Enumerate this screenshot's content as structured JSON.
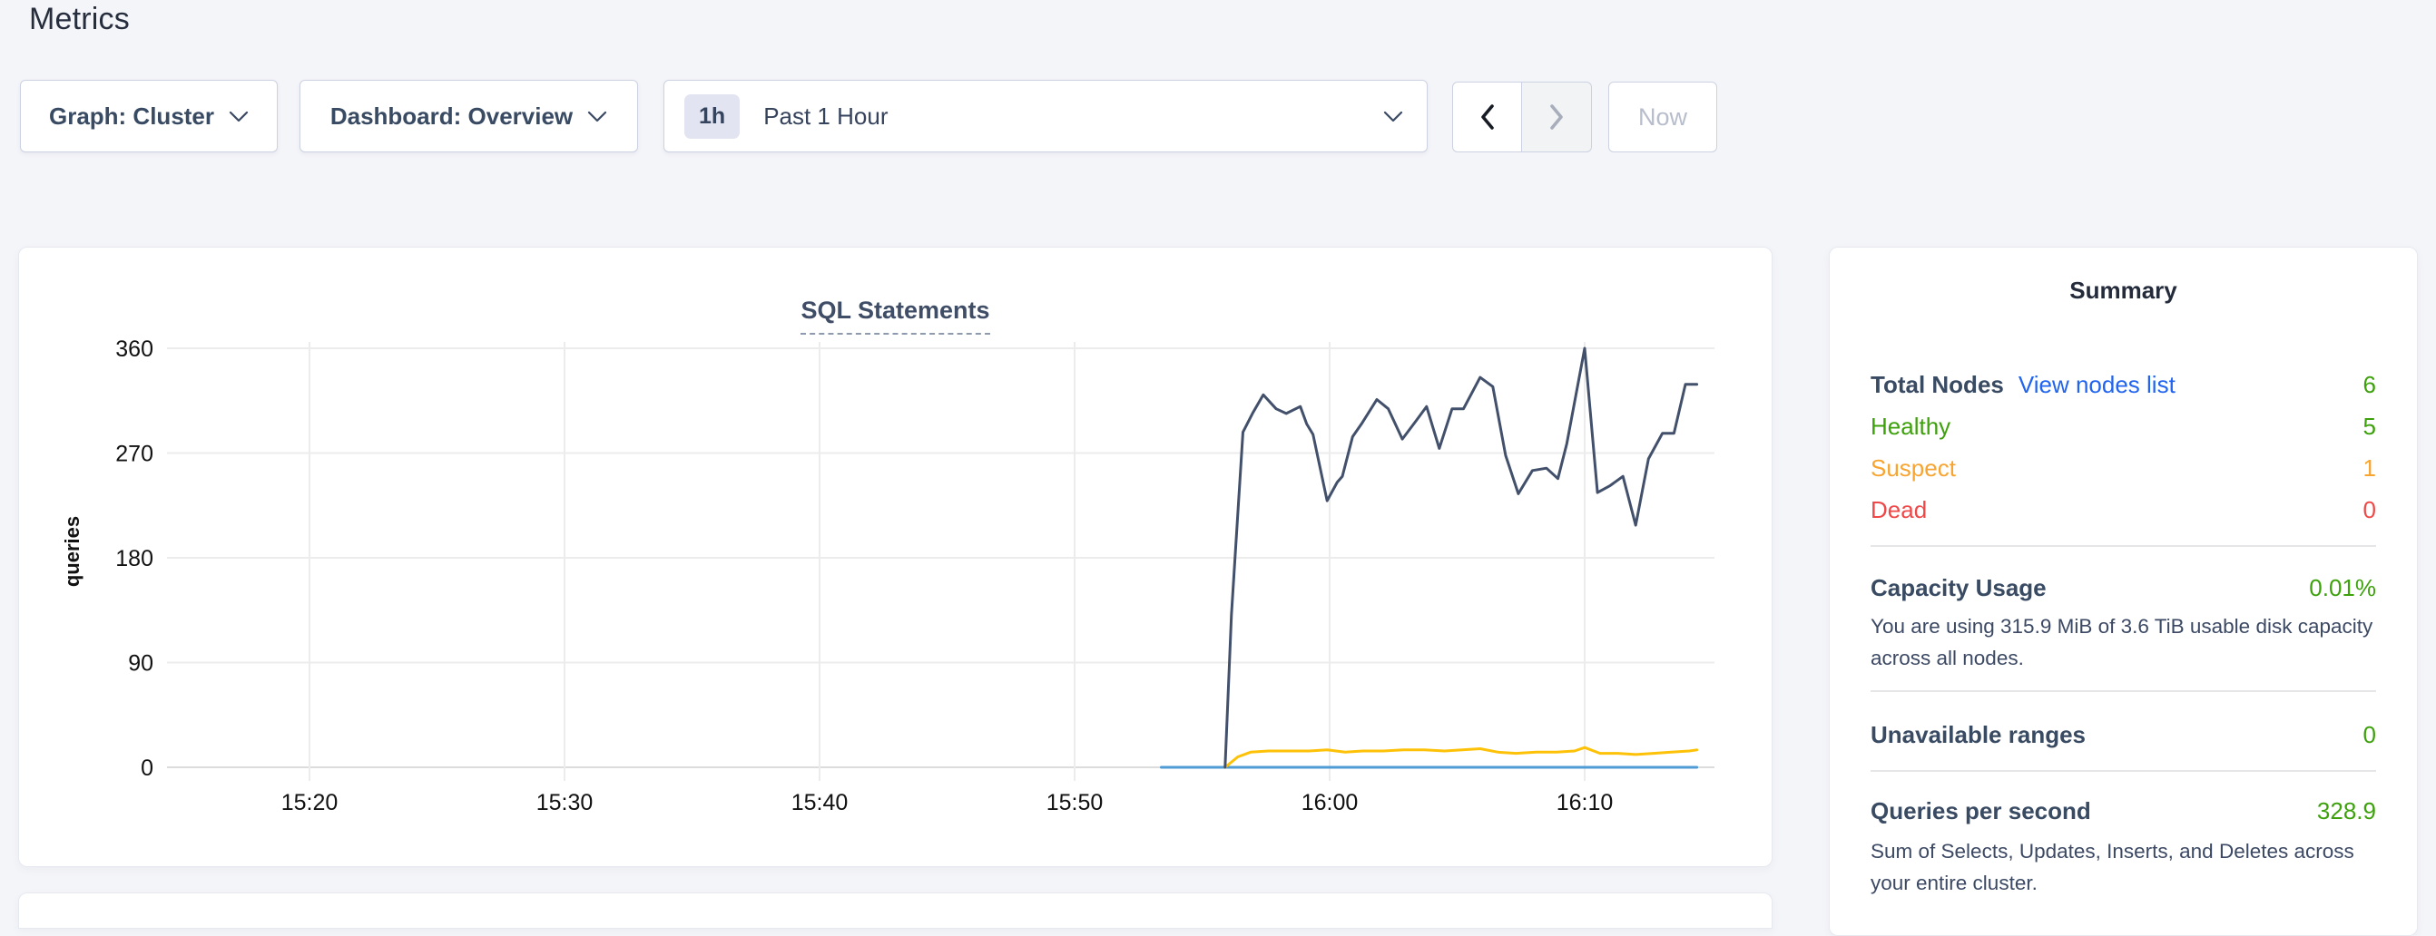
{
  "page": {
    "title": "Metrics"
  },
  "toolbar": {
    "graph_dropdown": {
      "label": "Graph: Cluster"
    },
    "dashboard_dropdown": {
      "label": "Dashboard: Overview"
    },
    "time_selector": {
      "badge": "1h",
      "label": "Past 1 Hour"
    },
    "now_button": {
      "label": "Now"
    }
  },
  "chart": {
    "title": "SQL Statements",
    "ylabel": "queries"
  },
  "chart_data": {
    "type": "line",
    "title": "SQL Statements",
    "ylabel": "queries",
    "yticks": [
      0,
      90,
      180,
      270,
      360
    ],
    "ylim": [
      0,
      360
    ],
    "xticks": [
      "15:20",
      "15:30",
      "15:40",
      "15:50",
      "16:00",
      "16:10"
    ],
    "xtick_minutes": [
      20,
      30,
      40,
      50,
      60,
      70
    ],
    "xlim_minutes": [
      14.4,
      75.2
    ],
    "x_unit": "minutes-after-15:00",
    "grid": true,
    "legend": "none",
    "series": [
      {
        "name": "light-blue-line",
        "color": "#4f9bd5",
        "width": 3,
        "points": [
          [
            53.4,
            0
          ],
          [
            74.4,
            0
          ]
        ]
      },
      {
        "name": "yellow-line",
        "color": "#fdc208",
        "width": 3,
        "points": [
          [
            55.9,
            0
          ],
          [
            56.4,
            9
          ],
          [
            56.9,
            13
          ],
          [
            57.6,
            14
          ],
          [
            58.4,
            14
          ],
          [
            59.2,
            14
          ],
          [
            59.9,
            15
          ],
          [
            60.6,
            13
          ],
          [
            61.3,
            14
          ],
          [
            62.1,
            14
          ],
          [
            62.9,
            15
          ],
          [
            63.7,
            15
          ],
          [
            64.5,
            14
          ],
          [
            65.2,
            15
          ],
          [
            65.9,
            16
          ],
          [
            66.6,
            13
          ],
          [
            67.3,
            12
          ],
          [
            68.1,
            13
          ],
          [
            68.9,
            13
          ],
          [
            69.6,
            14
          ],
          [
            70.0,
            17
          ],
          [
            70.6,
            12
          ],
          [
            71.3,
            12
          ],
          [
            72.0,
            11
          ],
          [
            72.7,
            12
          ],
          [
            73.4,
            13
          ],
          [
            74.1,
            14
          ],
          [
            74.4,
            15
          ]
        ]
      },
      {
        "name": "dark-navy-line",
        "color": "#42506b",
        "width": 3,
        "points": [
          [
            55.9,
            0
          ],
          [
            56.15,
            131
          ],
          [
            56.6,
            288
          ],
          [
            57.0,
            305
          ],
          [
            57.4,
            320
          ],
          [
            57.9,
            308
          ],
          [
            58.3,
            304
          ],
          [
            58.85,
            310
          ],
          [
            59.1,
            295
          ],
          [
            59.35,
            286
          ],
          [
            59.9,
            229
          ],
          [
            60.3,
            245
          ],
          [
            60.5,
            250
          ],
          [
            60.9,
            284
          ],
          [
            61.25,
            295
          ],
          [
            61.85,
            316
          ],
          [
            62.3,
            308
          ],
          [
            62.85,
            282
          ],
          [
            63.4,
            298
          ],
          [
            63.8,
            310
          ],
          [
            64.3,
            274
          ],
          [
            64.8,
            308
          ],
          [
            65.25,
            308
          ],
          [
            65.9,
            335
          ],
          [
            66.4,
            327
          ],
          [
            66.9,
            268
          ],
          [
            67.4,
            235
          ],
          [
            67.95,
            255
          ],
          [
            68.5,
            257
          ],
          [
            68.95,
            248
          ],
          [
            69.3,
            278
          ],
          [
            70.0,
            360
          ],
          [
            70.5,
            236
          ],
          [
            71.0,
            242
          ],
          [
            71.5,
            250
          ],
          [
            72.0,
            208
          ],
          [
            72.5,
            265
          ],
          [
            72.9,
            281
          ],
          [
            73.05,
            287
          ],
          [
            73.5,
            287
          ],
          [
            73.95,
            329
          ],
          [
            74.4,
            329
          ]
        ]
      }
    ]
  },
  "summary": {
    "title": "Summary",
    "total_nodes": {
      "label": "Total Nodes",
      "link": "View nodes list",
      "value": "6"
    },
    "node_rows": [
      {
        "label": "Healthy",
        "value": "5",
        "color": "#3da10c"
      },
      {
        "label": "Suspect",
        "value": "1",
        "color": "#f8a431"
      },
      {
        "label": "Dead",
        "value": "0",
        "color": "#ef4848"
      }
    ],
    "sections": [
      {
        "label": "Capacity Usage",
        "value": "0.01%",
        "description": "You are using 315.9 MiB of 3.6 TiB usable disk capacity across all nodes."
      },
      {
        "label": "Unavailable ranges",
        "value": "0",
        "description": ""
      },
      {
        "label": "Queries per second",
        "value": "328.9",
        "description": "Sum of Selects, Updates, Inserts, and Deletes across your entire cluster."
      }
    ]
  },
  "colors": {
    "link_blue": "#2064f0",
    "green": "#3da10c",
    "orange": "#f8a431",
    "red": "#ef4848",
    "navy_text": "#394a63",
    "grid": "#ececec",
    "grid_zero": "#dcdcdc",
    "tick_text": "#111111",
    "background": "#f4f5f9"
  }
}
